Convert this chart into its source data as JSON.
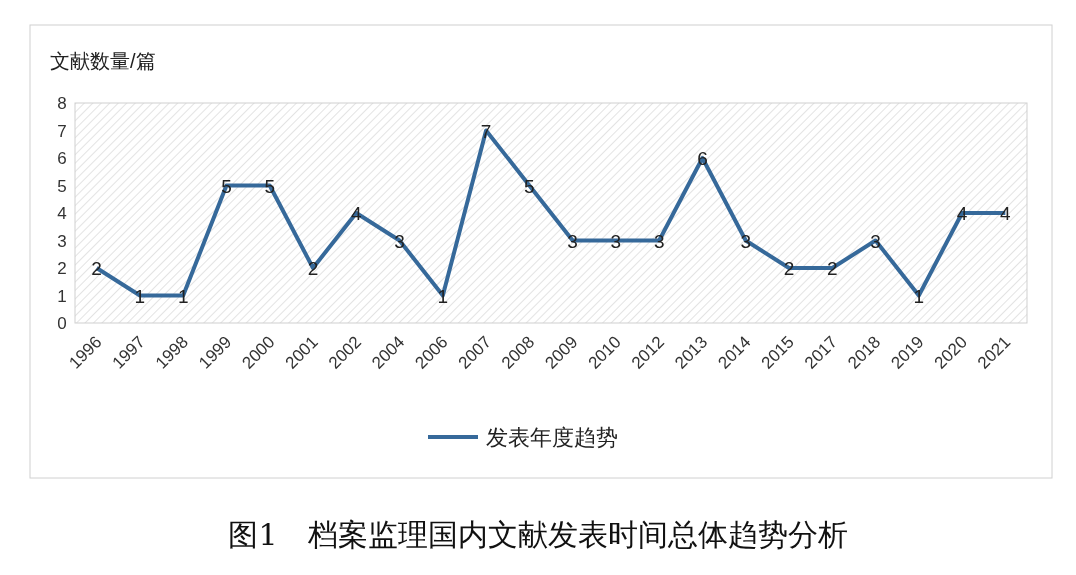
{
  "chart_data": {
    "type": "line",
    "ylabel": "文献数量/篇",
    "categories": [
      "1996",
      "1997",
      "1998",
      "1999",
      "2000",
      "2001",
      "2002",
      "2004",
      "2006",
      "2007",
      "2008",
      "2009",
      "2010",
      "2012",
      "2013",
      "2014",
      "2015",
      "2017",
      "2018",
      "2019",
      "2020",
      "2021"
    ],
    "series": [
      {
        "name": "发表年度趋势",
        "color": "#36699a",
        "values": [
          2,
          1,
          1,
          5,
          5,
          2,
          4,
          3,
          1,
          7,
          5,
          3,
          3,
          3,
          6,
          3,
          2,
          2,
          3,
          1,
          4,
          4
        ]
      }
    ],
    "ylim": [
      0,
      8
    ],
    "yticks": [
      0,
      1,
      2,
      3,
      4,
      5,
      6,
      7,
      8
    ],
    "data_labels": true,
    "legend": "bottom",
    "annotations": [
      "图1　档案监理国内文献发表时间总体趋势分析"
    ]
  }
}
